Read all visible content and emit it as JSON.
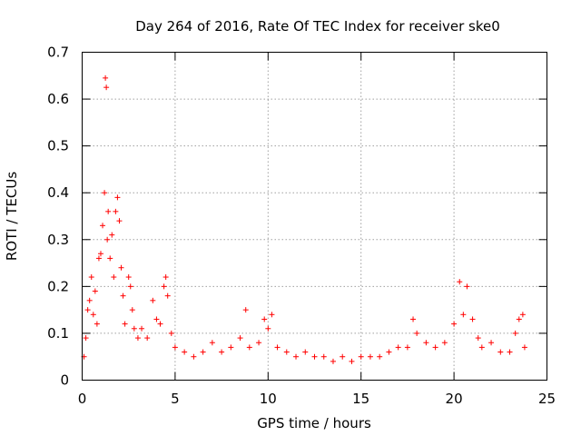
{
  "chart_data": {
    "type": "scatter",
    "title": "Day 264 of 2016, Rate Of TEC Index for receiver ske0",
    "xlabel": "GPS time / hours",
    "ylabel": "ROTI / TECUs",
    "xlim": [
      0,
      25
    ],
    "ylim": [
      0,
      0.7
    ],
    "grid": true,
    "xticks": [
      0,
      5,
      10,
      15,
      20,
      25
    ],
    "xtick_labels": [
      "0",
      "5",
      "10",
      "15",
      "20",
      "25"
    ],
    "yticks": [
      0,
      0.1,
      0.2,
      0.3,
      0.4,
      0.5,
      0.6,
      0.7
    ],
    "ytick_labels": [
      "0",
      "0.1",
      "0.2",
      "0.3",
      "0.4",
      "0.5",
      "0.6",
      "0.7"
    ],
    "marker": "+",
    "color": "#ff0000",
    "series": [
      {
        "name": "ROTI",
        "x": [
          0.1,
          0.2,
          0.3,
          0.4,
          0.5,
          0.6,
          0.7,
          0.8,
          0.9,
          1.0,
          1.1,
          1.2,
          1.25,
          1.3,
          1.35,
          1.4,
          1.5,
          1.6,
          1.7,
          1.8,
          1.9,
          2.0,
          2.1,
          2.2,
          2.3,
          2.5,
          2.6,
          2.7,
          2.8,
          3.0,
          3.2,
          3.5,
          3.8,
          4.0,
          4.2,
          4.4,
          4.5,
          4.6,
          4.8,
          5.0,
          5.5,
          6.0,
          6.5,
          7.0,
          7.5,
          8.0,
          8.5,
          8.8,
          9.0,
          9.5,
          9.8,
          10.0,
          10.2,
          10.5,
          11.0,
          11.5,
          12.0,
          12.5,
          13.0,
          13.5,
          14.0,
          14.5,
          15.0,
          15.5,
          16.0,
          16.5,
          17.0,
          17.5,
          17.8,
          18.0,
          18.5,
          19.0,
          19.5,
          20.0,
          20.3,
          20.5,
          20.7,
          21.0,
          21.3,
          21.5,
          22.0,
          22.5,
          23.0,
          23.3,
          23.5,
          23.7,
          23.8
        ],
        "values": [
          0.05,
          0.09,
          0.15,
          0.17,
          0.22,
          0.14,
          0.19,
          0.12,
          0.26,
          0.27,
          0.33,
          0.4,
          0.645,
          0.625,
          0.3,
          0.36,
          0.26,
          0.31,
          0.22,
          0.36,
          0.39,
          0.34,
          0.24,
          0.18,
          0.12,
          0.22,
          0.2,
          0.15,
          0.11,
          0.09,
          0.11,
          0.09,
          0.17,
          0.13,
          0.12,
          0.2,
          0.22,
          0.18,
          0.1,
          0.07,
          0.06,
          0.05,
          0.06,
          0.08,
          0.06,
          0.07,
          0.09,
          0.15,
          0.07,
          0.08,
          0.13,
          0.11,
          0.14,
          0.07,
          0.06,
          0.05,
          0.06,
          0.05,
          0.05,
          0.04,
          0.05,
          0.04,
          0.05,
          0.05,
          0.05,
          0.06,
          0.07,
          0.07,
          0.13,
          0.1,
          0.08,
          0.07,
          0.08,
          0.12,
          0.21,
          0.14,
          0.2,
          0.13,
          0.09,
          0.07,
          0.08,
          0.06,
          0.06,
          0.1,
          0.13,
          0.14,
          0.07
        ]
      }
    ]
  }
}
